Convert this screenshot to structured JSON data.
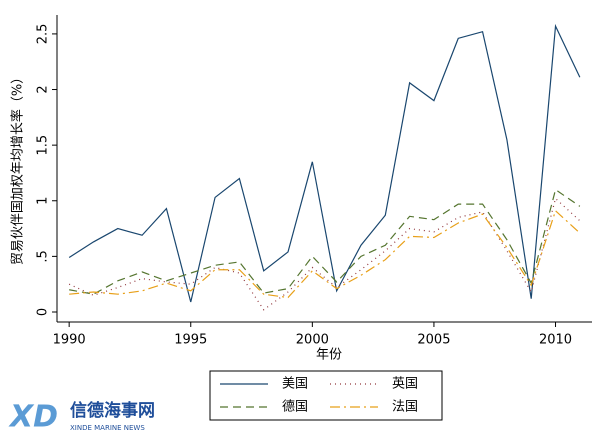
{
  "chart_data": {
    "type": "line",
    "xlabel": "年份",
    "ylabel": "贸易伙伴国加权年均增长率（%）",
    "x": [
      1990,
      1991,
      1992,
      1993,
      1994,
      1995,
      1996,
      1997,
      1998,
      1999,
      2000,
      2001,
      2002,
      2003,
      2004,
      2005,
      2006,
      2007,
      2008,
      2009,
      2010,
      2011
    ],
    "series": [
      {
        "name": "美国",
        "color": "#1a476f",
        "style": "solid",
        "values": [
          0.49,
          0.63,
          0.75,
          0.69,
          0.93,
          0.09,
          1.03,
          1.2,
          0.37,
          0.54,
          1.35,
          0.19,
          0.6,
          0.87,
          2.06,
          1.9,
          2.46,
          2.52,
          1.55,
          0.12,
          2.57,
          2.11
        ]
      },
      {
        "name": "英国",
        "color": "#90353b",
        "style": "dotted",
        "values": [
          0.25,
          0.15,
          0.22,
          0.3,
          0.27,
          0.25,
          0.4,
          0.35,
          0.02,
          0.18,
          0.4,
          0.22,
          0.38,
          0.55,
          0.75,
          0.72,
          0.85,
          0.9,
          0.55,
          0.18,
          1.02,
          0.82
        ]
      },
      {
        "name": "德国",
        "color": "#55752f",
        "style": "dashed",
        "values": [
          0.2,
          0.16,
          0.28,
          0.36,
          0.28,
          0.35,
          0.42,
          0.45,
          0.17,
          0.21,
          0.5,
          0.27,
          0.5,
          0.6,
          0.86,
          0.83,
          0.97,
          0.97,
          0.65,
          0.26,
          1.1,
          0.95
        ]
      },
      {
        "name": "法国",
        "color": "#e8a019",
        "style": "dashdot",
        "values": [
          0.16,
          0.18,
          0.16,
          0.19,
          0.26,
          0.19,
          0.38,
          0.38,
          0.16,
          0.13,
          0.37,
          0.21,
          0.33,
          0.47,
          0.68,
          0.67,
          0.8,
          0.88,
          0.58,
          0.24,
          0.91,
          0.71
        ]
      }
    ],
    "xlim": [
      1989.5,
      2011.5
    ],
    "xticks": [
      1990,
      1995,
      2000,
      2005,
      2010
    ],
    "ylim": [
      -0.09,
      2.67
    ],
    "yticks": [
      0,
      {
        "value": 0.5,
        "label": ".5"
      },
      1,
      1.5,
      2,
      2.5
    ],
    "legend": "bottom"
  },
  "logo": {
    "mark": "XD",
    "text": "信德海事网",
    "subtitle": "XINDE MARINE NEWS"
  }
}
